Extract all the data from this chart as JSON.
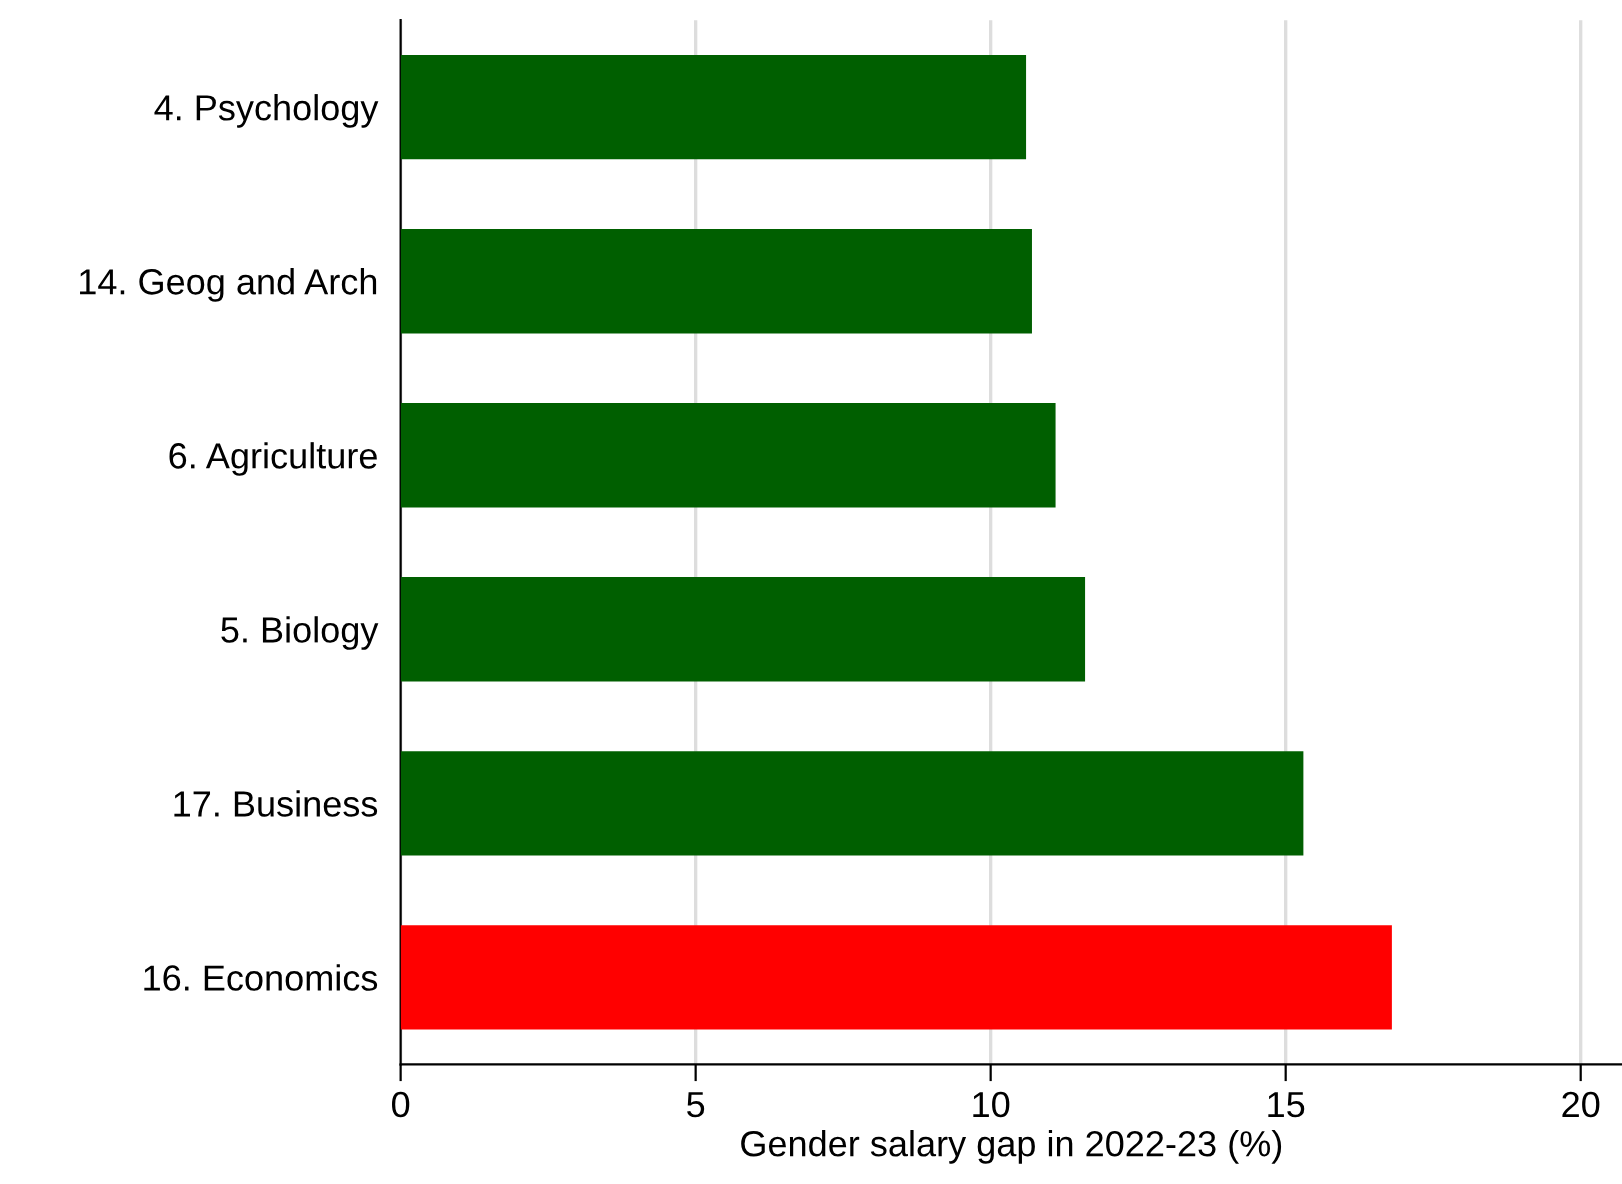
{
  "chart_data": {
    "type": "bar",
    "orientation": "horizontal",
    "xlabel": "Gender salary gap in 2022-23 (%)",
    "categories": [
      "4. Psychology",
      "14. Geog and Arch",
      "6. Agriculture",
      "5. Biology",
      "17. Business",
      "16. Economics"
    ],
    "values": [
      10.6,
      10.7,
      11.1,
      11.6,
      15.3,
      16.8
    ],
    "colors": [
      "#005f00",
      "#005f00",
      "#005f00",
      "#005f00",
      "#005f00",
      "#ff0000"
    ],
    "xlim": [
      0,
      20.7
    ],
    "xticks": [
      0,
      5,
      10,
      15,
      20
    ],
    "grid": "x"
  }
}
